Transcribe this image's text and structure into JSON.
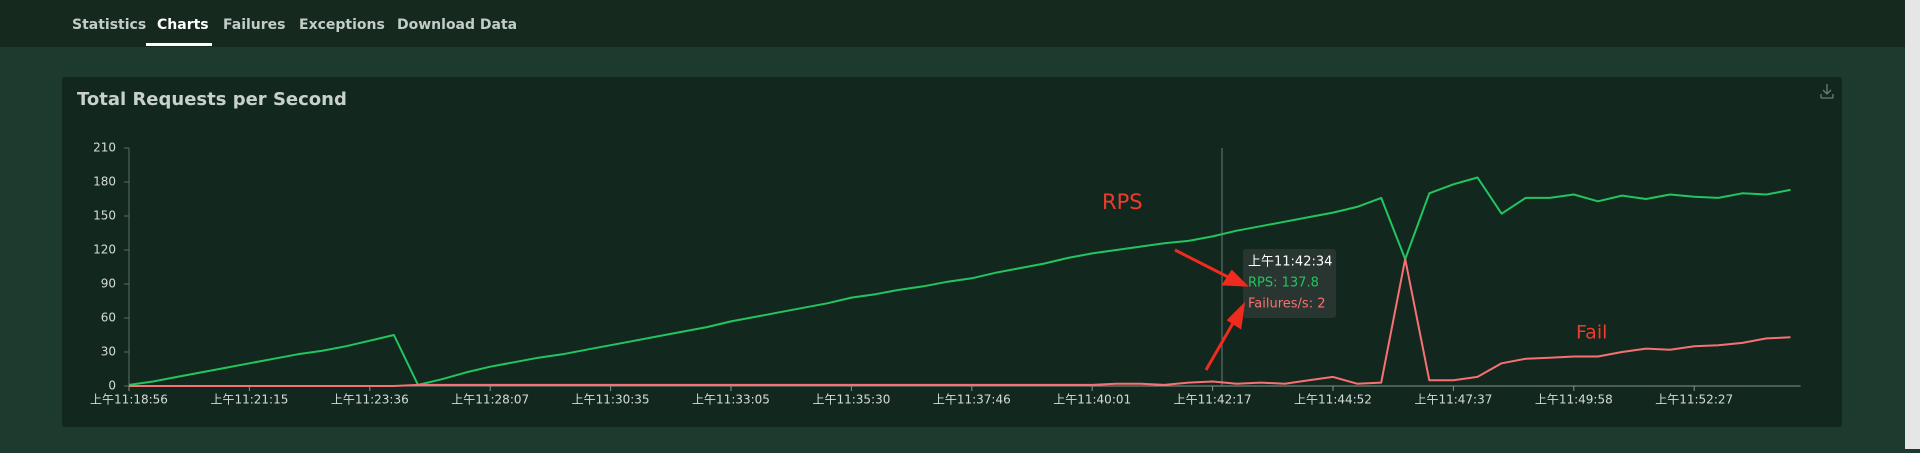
{
  "tabs": [
    "Statistics",
    "Charts",
    "Failures",
    "Exceptions",
    "Download Data"
  ],
  "chart_data": {
    "type": "line",
    "title": "Total Requests per Second",
    "categories": [
      "上午11:18:56",
      null,
      null,
      null,
      null,
      "上午11:21:15",
      null,
      null,
      null,
      null,
      "上午11:23:36",
      null,
      null,
      null,
      null,
      "上午11:28:07",
      null,
      null,
      null,
      null,
      "上午11:30:35",
      null,
      null,
      null,
      null,
      "上午11:33:05",
      null,
      null,
      null,
      null,
      "上午11:35:30",
      null,
      null,
      null,
      null,
      "上午11:37:46",
      null,
      null,
      null,
      null,
      "上午11:40:01",
      null,
      null,
      null,
      null,
      "上午11:42:17",
      null,
      null,
      null,
      null,
      "上午11:44:52",
      null,
      null,
      null,
      null,
      "上午11:47:37",
      null,
      null,
      null,
      null,
      "上午11:49:58",
      null,
      null,
      null,
      null,
      "上午11:52:27",
      null,
      null,
      null,
      null
    ],
    "series": [
      {
        "color": "#22c55e",
        "values": [
          1,
          4,
          8,
          12,
          16,
          20,
          24,
          28,
          31,
          35,
          40,
          45,
          1,
          6,
          12,
          17,
          21,
          25,
          28,
          32,
          36,
          40,
          44,
          48,
          52,
          57,
          61,
          65,
          69,
          73,
          78,
          81,
          85,
          88,
          92,
          95,
          100,
          104,
          108,
          113,
          117,
          120,
          123,
          126,
          128,
          132,
          137,
          141,
          145,
          149,
          153,
          158,
          166,
          112,
          170,
          178,
          184,
          152,
          166,
          166,
          169,
          163,
          168,
          165,
          169,
          167,
          166,
          170,
          169,
          173
        ]
      },
      {
        "color": "#f87171",
        "values": [
          0,
          0,
          0,
          0,
          0,
          0,
          0,
          0,
          0,
          0,
          0,
          0,
          1,
          1,
          1,
          1,
          1,
          1,
          1,
          1,
          1,
          1,
          1,
          1,
          1,
          1,
          1,
          1,
          1,
          1,
          1,
          1,
          1,
          1,
          1,
          1,
          1,
          1,
          1,
          1,
          1,
          2,
          2,
          1,
          3,
          4,
          2,
          3,
          2,
          5,
          8,
          2,
          3,
          112,
          5,
          5,
          8,
          20,
          24,
          25,
          26,
          26,
          30,
          33,
          32,
          35,
          36,
          38,
          42,
          43
        ]
      }
    ],
    "ylim": [
      0,
      210
    ],
    "yticks": [
      0,
      30,
      60,
      90,
      120,
      150,
      180,
      210
    ],
    "tooltip": {
      "time": "上午11:42:34",
      "lines": [
        "RPS: 137.8",
        "Failures/s: 2"
      ]
    },
    "annotations": [
      "RPS",
      "Fail"
    ]
  }
}
